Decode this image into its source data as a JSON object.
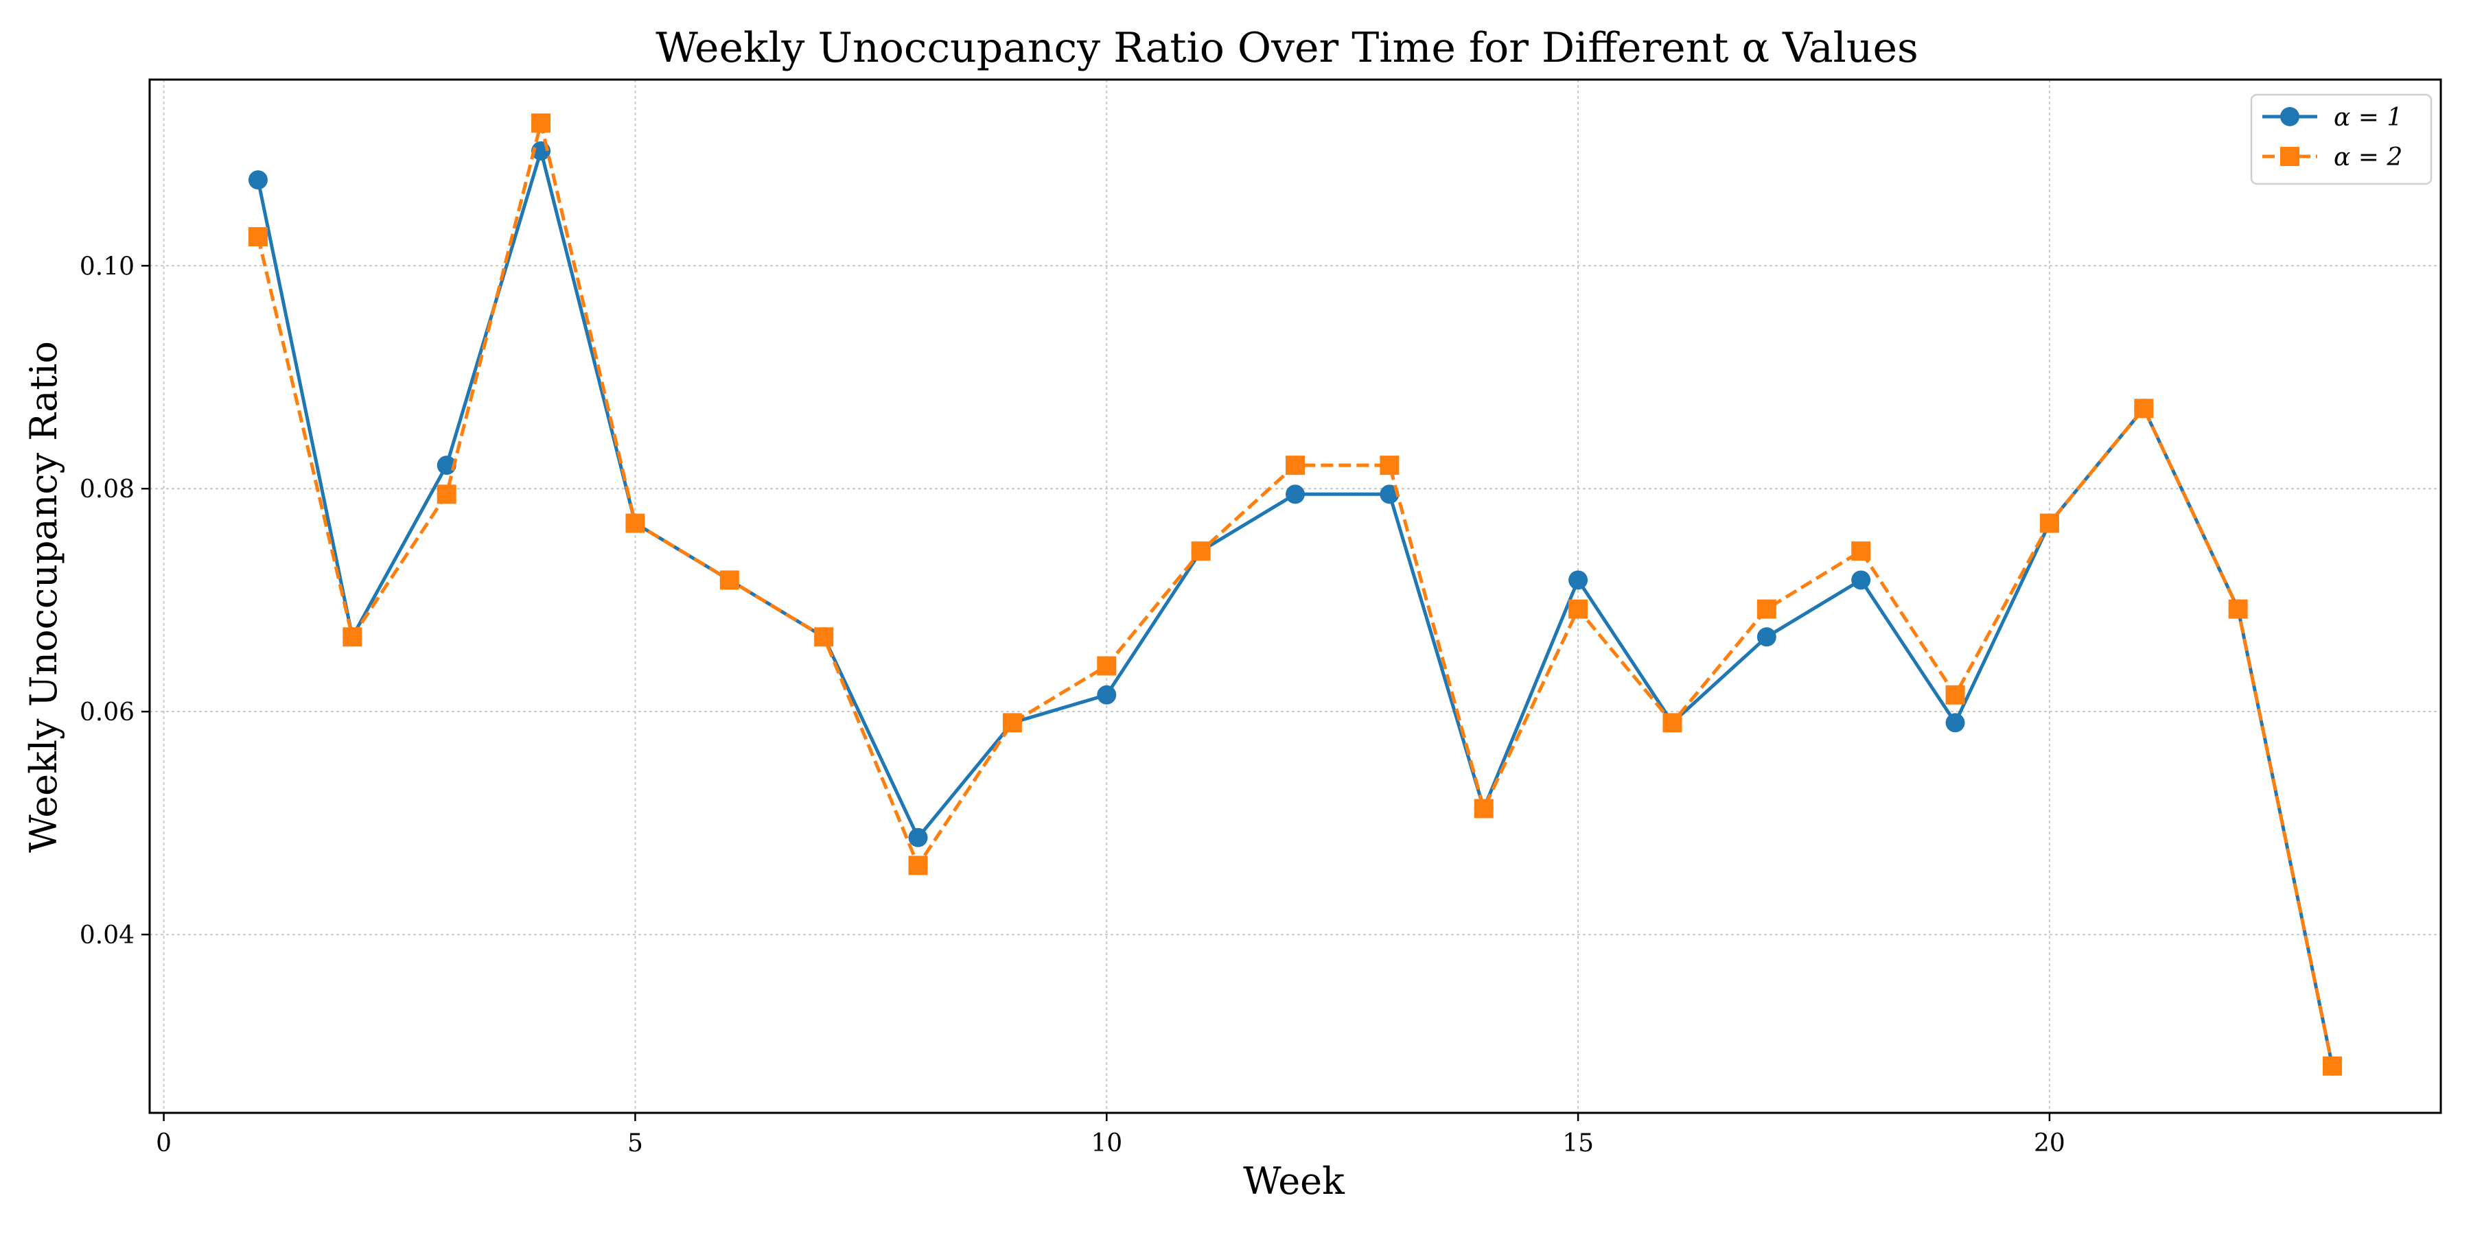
{
  "chart_data": {
    "type": "line",
    "title": "Weekly Unoccupancy Ratio Over Time for Different α Values",
    "xlabel": "Week",
    "ylabel": "Weekly Unoccupancy Ratio",
    "xlim": [
      -0.15,
      24.15
    ],
    "ylim": [
      0.024,
      0.1167
    ],
    "xticks": [
      0,
      5,
      10,
      15,
      20
    ],
    "xtick_labels": [
      "0",
      "5",
      "10",
      "15",
      "20"
    ],
    "yticks": [
      0.04,
      0.06,
      0.08,
      0.1
    ],
    "ytick_labels": [
      "0.04",
      "0.06",
      "0.08",
      "0.10"
    ],
    "grid": true,
    "legend_position": "top-right",
    "x": [
      1,
      2,
      3,
      4,
      5,
      6,
      7,
      8,
      9,
      10,
      11,
      12,
      13,
      14,
      15,
      16,
      17,
      18,
      19,
      20,
      21,
      22,
      23
    ],
    "series": [
      {
        "name": "α = 1",
        "color": "#1f77b4",
        "marker": "circle",
        "line_style": "solid",
        "values": [
          0.1077,
          0.0667,
          0.0821,
          0.1103,
          0.0769,
          0.0718,
          0.0667,
          0.0487,
          0.059,
          0.0615,
          0.0744,
          0.0795,
          0.0795,
          0.0513,
          0.0718,
          0.059,
          0.0667,
          0.0718,
          0.059,
          0.0769,
          0.0872,
          0.0692,
          0.0282
        ]
      },
      {
        "name": "α = 2",
        "color": "#ff7f0e",
        "marker": "square",
        "line_style": "dashed",
        "values": [
          0.1026,
          0.0667,
          0.0795,
          0.1128,
          0.0769,
          0.0718,
          0.0667,
          0.0462,
          0.059,
          0.0641,
          0.0744,
          0.0821,
          0.0821,
          0.0513,
          0.0692,
          0.059,
          0.0692,
          0.0744,
          0.0615,
          0.0769,
          0.0872,
          0.0692,
          0.0282
        ]
      }
    ]
  }
}
